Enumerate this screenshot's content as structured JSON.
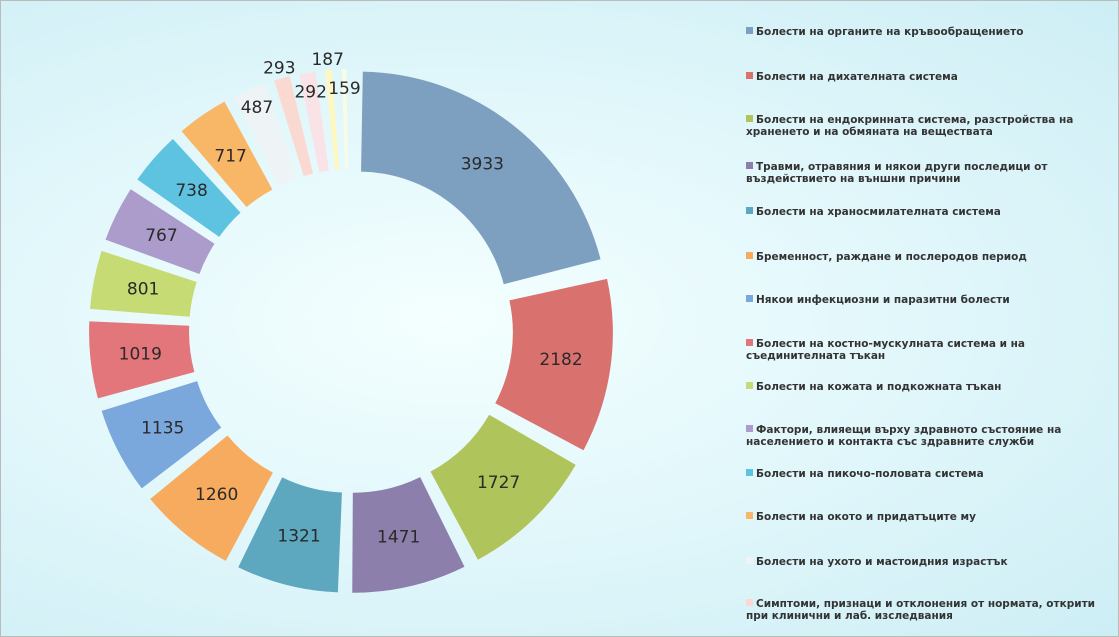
{
  "chart_data": {
    "type": "donut",
    "categories": [
      "Болести на органите на кръвообращението",
      "Болести на дихателната система",
      "Болести на ендокринната система, разстройства на храненето и на обмяната на веществата",
      "Травми, отравяния и някои други последици от въздействието на външни причини",
      "Болести на храносмилателната система",
      "Бременност, раждане и послеродов период",
      "Някои инфекциозни и паразитни болести",
      "Болести на костно-мускулната система и на съединителната тъкан",
      "Болести на кожата и подкожната тъкан",
      "Фактори, влияещи върху здравното състояние на населението и контакта със здравните служби",
      "Болести на пикочо-половата система",
      "Болести на окото и придатъците му",
      "Болести на ухото и мастоидния израстък",
      "Симптоми, признаци и отклонения от нормата, открити при клинични и лаб. изследвания",
      null,
      null,
      null
    ],
    "values": [
      3933,
      2182,
      1727,
      1471,
      1321,
      1260,
      1135,
      1019,
      801,
      767,
      738,
      717,
      487,
      293,
      292,
      187,
      159
    ],
    "colors": [
      "#7d9fc0",
      "#d9716f",
      "#b0c45c",
      "#8c7fab",
      "#5da7bf",
      "#f6ab5e",
      "#7ba8dc",
      "#e3767a",
      "#c6db74",
      "#ab9ccb",
      "#5ec3e0",
      "#f8b766",
      "#eef3f6",
      "#fbd9d3",
      "#f9e3e6",
      "#fdf7c4",
      "#f8fbe6"
    ]
  }
}
